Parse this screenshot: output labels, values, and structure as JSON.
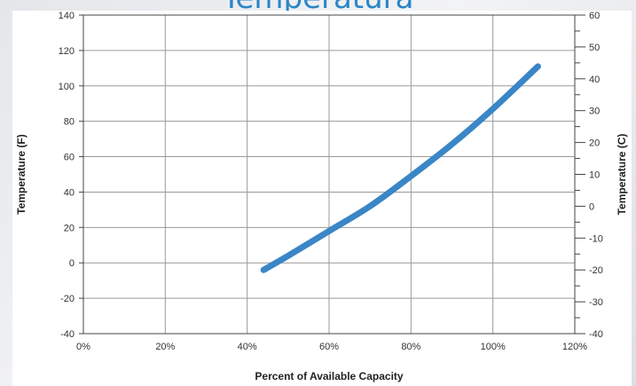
{
  "slide": {
    "title": "Temperatura"
  },
  "colors": {
    "line": "#3a86c6",
    "grid": "#9a9a9a",
    "frame": "#444444",
    "title": "#2a86c8"
  },
  "chart_data": {
    "type": "line",
    "title": "",
    "xlabel": "Percent of Available Capacity",
    "ylabel": "Temperature (F)",
    "ylabel_right": "Temperature (C)",
    "xlim": [
      0,
      120
    ],
    "ylim": [
      -40,
      140
    ],
    "ylim_right": [
      -40,
      60
    ],
    "x_ticks": [
      "0%",
      "20%",
      "40%",
      "60%",
      "80%",
      "100%",
      "120%"
    ],
    "y_ticks": [
      "140",
      "120",
      "100",
      "80",
      "60",
      "40",
      "20",
      "0",
      "-20",
      "-40"
    ],
    "y_ticks_right": [
      "60",
      "50",
      "40",
      "30",
      "20",
      "10",
      "0",
      "-10",
      "-20",
      "-30",
      "-40"
    ],
    "grid": true,
    "series": [
      {
        "x": [
          44,
          50,
          60,
          70,
          80,
          90,
          100,
          111
        ],
        "y": [
          -4,
          4,
          18,
          32,
          49,
          67,
          87,
          111
        ]
      }
    ]
  }
}
